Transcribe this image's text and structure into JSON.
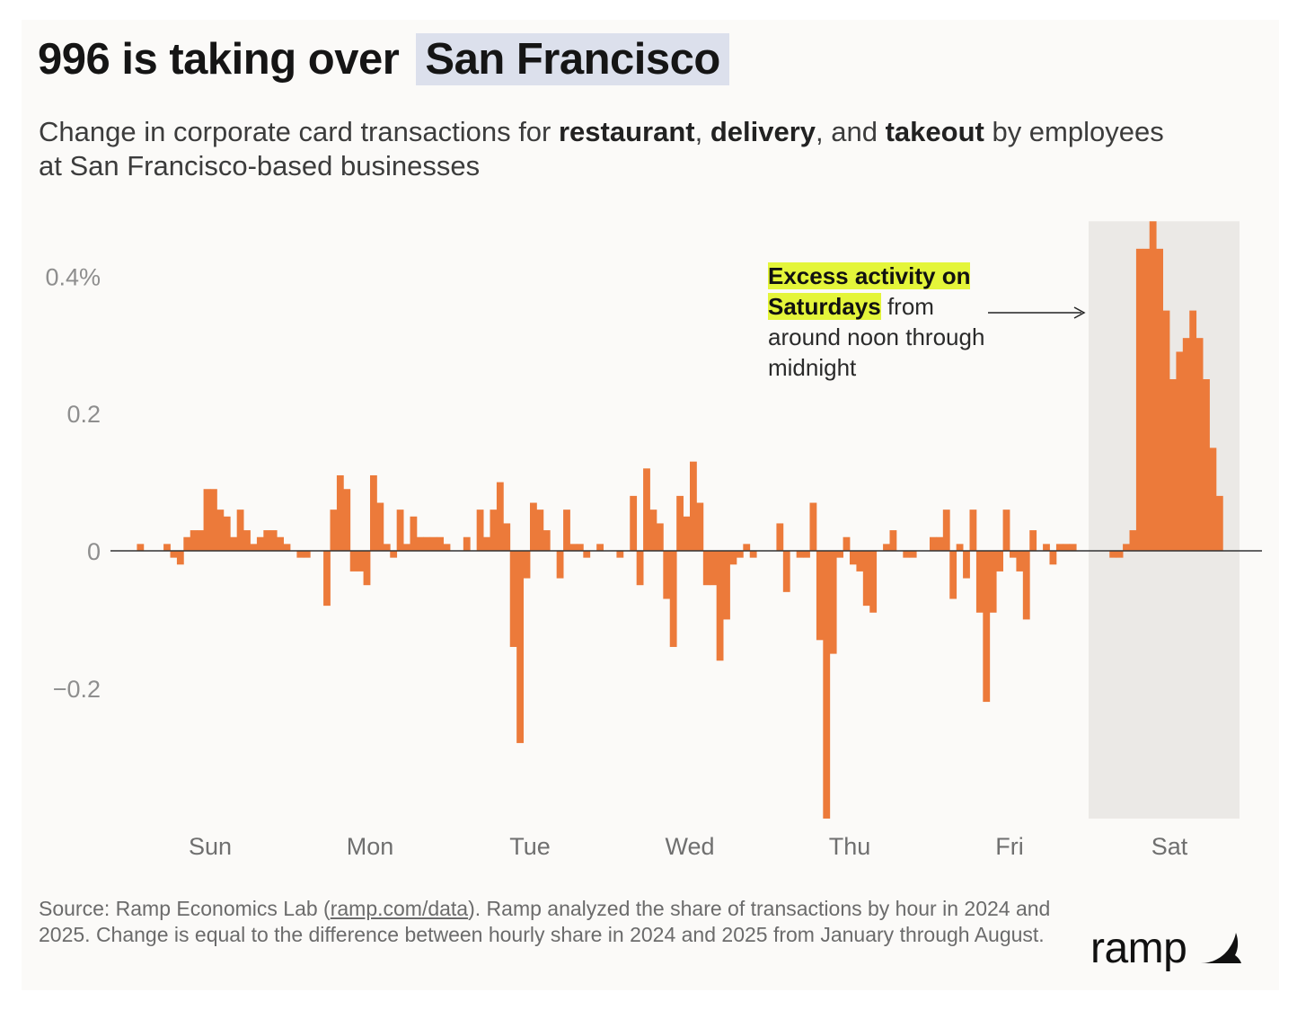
{
  "title": {
    "prefix": "996 is taking over",
    "highlight": "San Francisco"
  },
  "subtitle": {
    "t1": "Change in corporate card transactions for ",
    "b1": "restaurant",
    "t2": ", ",
    "b2": "delivery",
    "t3": ", and ",
    "b3": "takeout",
    "t4": " by employees at San Francisco-based businesses"
  },
  "annotation": {
    "highlight1": "Excess activity on",
    "highlight2": "Saturdays",
    "rest": " from around noon through midnight"
  },
  "source": {
    "prefix": "Source: Ramp Economics Lab (",
    "link": "ramp.com/data",
    "suffix": "). Ramp analyzed the share of transactions by hour in 2024 and 2025. Change is equal to the difference between hourly share in 2024 and 2025 from January through August."
  },
  "logo": {
    "text": "ramp",
    "icon": "ramp-wing-icon"
  },
  "colors": {
    "bar": "#ec7a3a",
    "shade": "#ebe9e6",
    "title_highlight": "#dce0ec",
    "annotation_highlight": "#e4f53a",
    "background": "#fbfaf8"
  },
  "chart_data": {
    "type": "bar",
    "ylabel": "",
    "xlabel": "",
    "ylim": [
      -0.39,
      0.48
    ],
    "yticks": [
      {
        "value": 0.4,
        "label": "0.4%"
      },
      {
        "value": 0.2,
        "label": "0.2"
      },
      {
        "value": 0,
        "label": "0"
      },
      {
        "value": -0.2,
        "label": "−0.2"
      }
    ],
    "days": [
      "Sun",
      "Mon",
      "Tue",
      "Wed",
      "Thu",
      "Fri",
      "Sat"
    ],
    "highlight_day": "Sat",
    "series": [
      {
        "unit": "percentage points",
        "hourly_values": [
          [
            0,
            0.01,
            0,
            0,
            0,
            0.01,
            -0.01,
            -0.02,
            0.02,
            0.03,
            0.03,
            0.09,
            0.09,
            0.06,
            0.05,
            0.02,
            0.06,
            0.03,
            0.01,
            0.02,
            0.03,
            0.03,
            0.02,
            0.01
          ],
          [
            0,
            -0.01,
            -0.01,
            0,
            0,
            -0.08,
            0.06,
            0.11,
            0.09,
            -0.03,
            -0.03,
            -0.05,
            0.11,
            0.07,
            0.01,
            -0.01,
            0.06,
            0.01,
            0.05,
            0.02,
            0.02,
            0.02,
            0.02,
            0.01
          ],
          [
            0,
            0,
            0.02,
            0,
            0.06,
            0.02,
            0.06,
            0.1,
            0.04,
            -0.14,
            -0.28,
            -0.04,
            0.07,
            0.06,
            0.03,
            0,
            -0.04,
            0.06,
            0.01,
            0.01,
            -0.01,
            0,
            0.01,
            0
          ],
          [
            0,
            -0.01,
            0,
            0.08,
            -0.05,
            0.12,
            0.06,
            0.04,
            -0.07,
            -0.14,
            0.08,
            0.05,
            0.13,
            0.07,
            -0.05,
            -0.05,
            -0.16,
            -0.1,
            -0.02,
            -0.01,
            0.01,
            -0.01,
            0,
            0
          ],
          [
            0,
            0.04,
            -0.06,
            0,
            -0.01,
            -0.01,
            0.07,
            -0.13,
            -0.39,
            -0.15,
            -0.01,
            0.02,
            -0.02,
            -0.03,
            -0.08,
            -0.09,
            0,
            0.01,
            0.03,
            0,
            -0.01,
            -0.01,
            0,
            0
          ],
          [
            0.02,
            0.02,
            0.06,
            -0.07,
            0.01,
            -0.04,
            0.06,
            -0.09,
            -0.22,
            -0.09,
            -0.03,
            0.06,
            -0.01,
            -0.03,
            -0.1,
            0.03,
            0,
            0.01,
            -0.02,
            0.01,
            0.01,
            0.01,
            0,
            0
          ],
          [
            0,
            0,
            0,
            -0.01,
            -0.01,
            0.01,
            0.03,
            0.44,
            0.44,
            0.48,
            0.44,
            0.35,
            0.25,
            0.29,
            0.31,
            0.35,
            0.31,
            0.25,
            0.15,
            0.08,
            0,
            0,
            0,
            0
          ]
        ]
      }
    ]
  }
}
